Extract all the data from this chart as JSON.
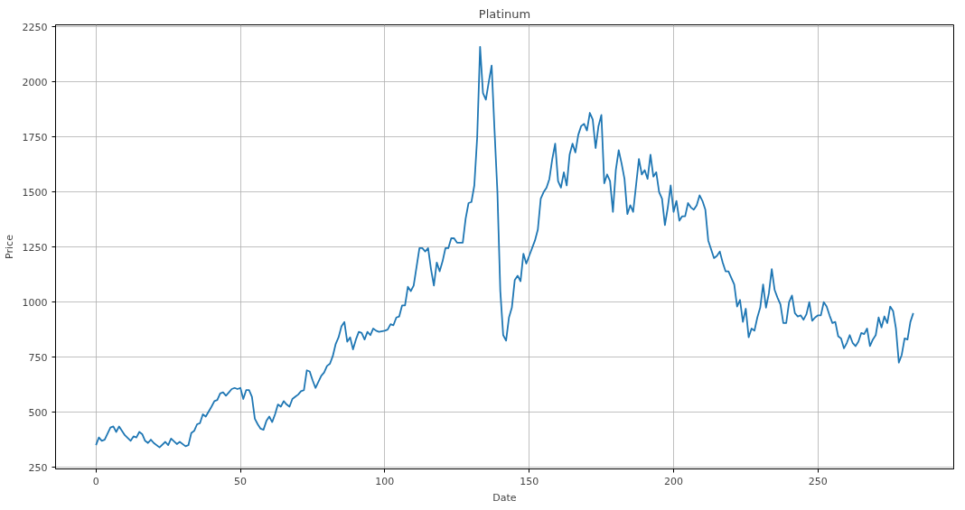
{
  "chart_data": {
    "type": "line",
    "title": "Platinum",
    "xlabel": "Date",
    "ylabel": "Price",
    "xlim": [
      -14,
      297
    ],
    "ylim": [
      242,
      2260
    ],
    "xticks": [
      0,
      50,
      100,
      150,
      200,
      250
    ],
    "yticks": [
      250,
      500,
      750,
      1000,
      1250,
      1500,
      1750,
      2000,
      2250
    ],
    "grid": true,
    "marker": "none",
    "line_style": "solid",
    "series": [
      {
        "color": "#1f77b4",
        "x": [
          0,
          1,
          2,
          3,
          5,
          6,
          7,
          8,
          10,
          12,
          13,
          14,
          15,
          16,
          17,
          18,
          19,
          20,
          22,
          24,
          25,
          26,
          28,
          29,
          31,
          32,
          33,
          34,
          35,
          36,
          37,
          38,
          40,
          41,
          42,
          43,
          44,
          45,
          47,
          48,
          49,
          50,
          51,
          52,
          53,
          54,
          55,
          56,
          57,
          58,
          59,
          60,
          61,
          62,
          63,
          64,
          65,
          66,
          67,
          68,
          69,
          70,
          71,
          72,
          73,
          74,
          75,
          76,
          78,
          79,
          80,
          81,
          82,
          83,
          84,
          85,
          86,
          87,
          88,
          89,
          90,
          91,
          92,
          93,
          94,
          95,
          96,
          97,
          98,
          100,
          101,
          102,
          103,
          104,
          105,
          106,
          107,
          108,
          109,
          110,
          111,
          112,
          113,
          114,
          115,
          116,
          117,
          118,
          119,
          120,
          121,
          122,
          123,
          124,
          125,
          127,
          128,
          129,
          130,
          131,
          132,
          133,
          134,
          135,
          136,
          137,
          138,
          139,
          140,
          141,
          142,
          143,
          144,
          145,
          146,
          147,
          148,
          149,
          150,
          152,
          153,
          154,
          155,
          156,
          157,
          158,
          159,
          160,
          161,
          162,
          163,
          164,
          165,
          166,
          167,
          168,
          169,
          170,
          171,
          172,
          173,
          174,
          175,
          176,
          177,
          178,
          179,
          180,
          181,
          182,
          183,
          184,
          185,
          186,
          187,
          188,
          189,
          190,
          191,
          192,
          193,
          194,
          195,
          196,
          197,
          198,
          199,
          200,
          201,
          202,
          203,
          204,
          205,
          206,
          207,
          208,
          209,
          210,
          211,
          212,
          213,
          214,
          215,
          216,
          217,
          218,
          219,
          220,
          221,
          222,
          223,
          224,
          225,
          226,
          227,
          228,
          229,
          230,
          231,
          232,
          233,
          234,
          235,
          236,
          237,
          238,
          239,
          240,
          241,
          242,
          243,
          244,
          245,
          246,
          247,
          248,
          249,
          250,
          251,
          252,
          253,
          254,
          255,
          256,
          257,
          258,
          259,
          260,
          261,
          262,
          263,
          264,
          265,
          266,
          267,
          268,
          269,
          270,
          271,
          272,
          273,
          274,
          275,
          276,
          277,
          278,
          279,
          280,
          281,
          282,
          283
        ],
        "values": [
          350,
          385,
          370,
          375,
          430,
          435,
          410,
          435,
          395,
          370,
          390,
          385,
          410,
          400,
          370,
          360,
          375,
          360,
          340,
          365,
          350,
          380,
          355,
          365,
          345,
          350,
          405,
          415,
          445,
          450,
          490,
          480,
          525,
          550,
          555,
          585,
          590,
          575,
          605,
          610,
          605,
          610,
          560,
          600,
          600,
          570,
          470,
          445,
          425,
          420,
          460,
          480,
          455,
          490,
          535,
          525,
          550,
          535,
          525,
          560,
          570,
          580,
          595,
          600,
          690,
          685,
          645,
          610,
          665,
          680,
          710,
          720,
          755,
          810,
          840,
          890,
          910,
          820,
          840,
          785,
          830,
          865,
          860,
          830,
          865,
          850,
          880,
          870,
          865,
          870,
          875,
          900,
          895,
          930,
          935,
          985,
          985,
          1070,
          1050,
          1075,
          1160,
          1245,
          1245,
          1230,
          1245,
          1150,
          1075,
          1180,
          1140,
          1185,
          1245,
          1245,
          1290,
          1290,
          1270,
          1270,
          1380,
          1450,
          1455,
          1530,
          1750,
          2160,
          1950,
          1920,
          2000,
          2075,
          1780,
          1500,
          1050,
          850,
          825,
          930,
          975,
          1100,
          1120,
          1095,
          1220,
          1175,
          1210,
          1280,
          1330,
          1470,
          1500,
          1520,
          1560,
          1650,
          1720,
          1550,
          1520,
          1590,
          1530,
          1670,
          1720,
          1680,
          1760,
          1800,
          1810,
          1780,
          1860,
          1830,
          1700,
          1800,
          1850,
          1540,
          1580,
          1550,
          1410,
          1600,
          1690,
          1630,
          1560,
          1400,
          1440,
          1410,
          1530,
          1650,
          1580,
          1600,
          1560,
          1670,
          1570,
          1590,
          1500,
          1470,
          1350,
          1430,
          1530,
          1410,
          1460,
          1370,
          1390,
          1390,
          1450,
          1430,
          1420,
          1440,
          1485,
          1460,
          1420,
          1280,
          1240,
          1200,
          1210,
          1230,
          1180,
          1140,
          1140,
          1110,
          1080,
          980,
          1010,
          910,
          970,
          840,
          880,
          870,
          930,
          975,
          1080,
          975,
          1040,
          1150,
          1055,
          1020,
          990,
          905,
          905,
          1000,
          1030,
          950,
          935,
          940,
          920,
          945,
          1000,
          915,
          930,
          940,
          940,
          1000,
          980,
          940,
          905,
          910,
          845,
          835,
          790,
          815,
          850,
          815,
          800,
          820,
          860,
          855,
          880,
          800,
          830,
          850,
          930,
          885,
          935,
          905,
          980,
          960,
          880,
          725,
          760,
          835,
          830,
          910,
          950
        ]
      }
    ]
  }
}
